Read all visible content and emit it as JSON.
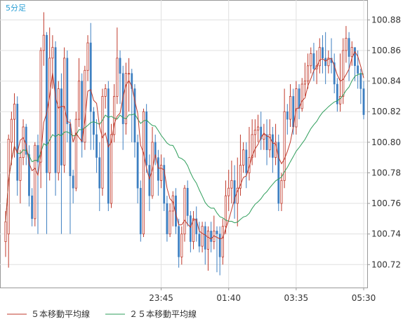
{
  "chart_data": {
    "type": "candlestick",
    "timeframe_label": "5分足",
    "x_tick_labels": [
      "23:45",
      "01:40",
      "03:35",
      "05:30"
    ],
    "y_tick_labels": [
      "100.72",
      "100.74",
      "100.76",
      "100.78",
      "100.80",
      "100.82",
      "100.84",
      "100.86",
      "100.88"
    ],
    "ylim": [
      100.705,
      100.893
    ],
    "grid": true,
    "legend_position": "bottom-left",
    "colors": {
      "up_candle": "#c0392b",
      "down_candle": "#3d7fc1",
      "ma5": "#c0392b",
      "ma25": "#2e9e5b",
      "grid": "#e0e0e0",
      "axis": "#999999"
    },
    "series": [
      {
        "name": "５本移動平均線",
        "key": "ma5"
      },
      {
        "name": "２５本移動平均線",
        "key": "ma25"
      }
    ],
    "candles": [
      [
        100.735,
        100.748,
        100.725,
        100.755
      ],
      [
        100.74,
        100.802,
        100.718,
        100.805
      ],
      [
        100.8,
        100.815,
        100.785,
        100.82
      ],
      [
        100.815,
        100.825,
        100.79,
        100.832
      ],
      [
        100.825,
        100.775,
        100.765,
        100.83
      ],
      [
        100.775,
        100.79,
        100.76,
        100.795
      ],
      [
        100.79,
        100.81,
        100.785,
        100.815
      ],
      [
        100.81,
        100.792,
        100.785,
        100.812
      ],
      [
        100.792,
        100.765,
        100.758,
        100.798
      ],
      [
        100.765,
        100.75,
        100.745,
        100.77
      ],
      [
        100.75,
        100.798,
        100.745,
        100.8
      ],
      [
        100.798,
        100.787,
        100.74,
        100.805
      ],
      [
        100.787,
        100.86,
        100.77,
        100.862
      ],
      [
        100.86,
        100.87,
        100.85,
        100.885
      ],
      [
        100.87,
        100.78,
        100.74,
        100.872
      ],
      [
        100.78,
        100.855,
        100.775,
        100.875
      ],
      [
        100.855,
        100.862,
        100.835,
        100.87
      ],
      [
        100.862,
        100.78,
        100.765,
        100.866
      ],
      [
        100.78,
        100.835,
        100.775,
        100.84
      ],
      [
        100.835,
        100.785,
        100.74,
        100.845
      ],
      [
        100.785,
        100.855,
        100.78,
        100.862
      ],
      [
        100.855,
        100.812,
        100.8,
        100.86
      ],
      [
        100.812,
        100.778,
        100.74,
        100.815
      ],
      [
        100.778,
        100.77,
        100.76,
        100.782
      ],
      [
        100.77,
        100.815,
        100.768,
        100.82
      ],
      [
        100.815,
        100.84,
        100.81,
        100.855
      ],
      [
        100.84,
        100.8,
        100.79,
        100.845
      ],
      [
        100.8,
        100.847,
        100.795,
        100.85
      ],
      [
        100.847,
        100.865,
        100.84,
        100.87
      ],
      [
        100.865,
        100.82,
        100.795,
        100.878
      ],
      [
        100.82,
        100.805,
        100.795,
        100.823
      ],
      [
        100.805,
        100.79,
        100.78,
        100.815
      ],
      [
        100.79,
        100.77,
        100.755,
        100.8
      ],
      [
        100.77,
        100.83,
        100.765,
        100.835
      ],
      [
        100.83,
        100.835,
        100.822,
        100.838
      ],
      [
        100.835,
        100.76,
        100.755,
        100.84
      ],
      [
        100.76,
        100.805,
        100.757,
        100.812
      ],
      [
        100.805,
        100.83,
        100.8,
        100.838
      ],
      [
        100.83,
        100.855,
        100.825,
        100.875
      ],
      [
        100.855,
        100.845,
        100.825,
        100.86
      ],
      [
        100.845,
        100.812,
        100.795,
        100.85
      ],
      [
        100.812,
        100.845,
        100.805,
        100.852
      ],
      [
        100.845,
        100.845,
        100.82,
        100.855
      ],
      [
        100.845,
        100.835,
        100.8,
        100.848
      ],
      [
        100.835,
        100.8,
        100.79,
        100.838
      ],
      [
        100.8,
        100.77,
        100.76,
        100.805
      ],
      [
        100.77,
        100.74,
        100.735,
        100.775
      ],
      [
        100.74,
        100.82,
        100.738,
        100.822
      ],
      [
        100.82,
        100.785,
        100.78,
        100.825
      ],
      [
        100.785,
        100.765,
        100.755,
        100.792
      ],
      [
        100.765,
        100.8,
        100.763,
        100.81
      ],
      [
        100.8,
        100.79,
        100.785,
        100.805
      ],
      [
        100.79,
        100.775,
        100.765,
        100.795
      ],
      [
        100.775,
        100.785,
        100.77,
        100.792
      ],
      [
        100.785,
        100.76,
        100.755,
        100.79
      ],
      [
        100.76,
        100.74,
        100.735,
        100.765
      ],
      [
        100.74,
        100.755,
        100.738,
        100.76
      ],
      [
        100.755,
        100.765,
        100.745,
        100.768
      ],
      [
        100.765,
        100.745,
        100.74,
        100.77
      ],
      [
        100.745,
        100.725,
        100.718,
        100.75
      ],
      [
        100.725,
        100.74,
        100.72,
        100.745
      ],
      [
        100.74,
        100.77,
        100.735,
        100.772
      ],
      [
        100.77,
        100.752,
        100.745,
        100.775
      ],
      [
        100.752,
        100.735,
        100.728,
        100.755
      ],
      [
        100.735,
        100.75,
        100.73,
        100.755
      ],
      [
        100.75,
        100.74,
        100.735,
        100.758
      ],
      [
        100.74,
        100.732,
        100.728,
        100.748
      ],
      [
        100.732,
        100.745,
        100.728,
        100.748
      ],
      [
        100.745,
        100.73,
        100.72,
        100.748
      ],
      [
        100.73,
        100.742,
        100.716,
        100.745
      ],
      [
        100.742,
        100.735,
        100.728,
        100.748
      ],
      [
        100.735,
        100.742,
        100.73,
        100.752
      ],
      [
        100.742,
        100.74,
        100.715,
        100.745
      ],
      [
        100.74,
        100.725,
        100.713,
        100.745
      ],
      [
        100.725,
        100.745,
        100.72,
        100.75
      ],
      [
        100.745,
        100.765,
        100.74,
        100.775
      ],
      [
        100.765,
        100.77,
        100.755,
        100.782
      ],
      [
        100.77,
        100.775,
        100.76,
        100.788
      ],
      [
        100.775,
        100.76,
        100.75,
        100.785
      ],
      [
        100.76,
        100.77,
        100.745,
        100.79
      ],
      [
        100.77,
        100.785,
        100.765,
        100.805
      ],
      [
        100.785,
        100.795,
        100.78,
        100.8
      ],
      [
        100.795,
        100.78,
        100.77,
        100.8
      ],
      [
        100.78,
        100.79,
        100.775,
        100.81
      ],
      [
        100.79,
        100.805,
        100.785,
        100.815
      ],
      [
        100.805,
        100.808,
        100.79,
        100.815
      ],
      [
        100.808,
        100.81,
        100.8,
        100.818
      ],
      [
        100.81,
        100.802,
        100.795,
        100.82
      ],
      [
        100.802,
        100.805,
        100.795,
        100.812
      ],
      [
        100.805,
        100.795,
        100.785,
        100.815
      ],
      [
        100.795,
        100.805,
        100.79,
        100.815
      ],
      [
        100.805,
        100.79,
        100.78,
        100.81
      ],
      [
        100.79,
        100.8,
        100.785,
        100.812
      ],
      [
        100.8,
        100.76,
        100.755,
        100.805
      ],
      [
        100.76,
        100.775,
        100.755,
        100.78
      ],
      [
        100.775,
        100.82,
        100.77,
        100.835
      ],
      [
        100.82,
        100.815,
        100.805,
        100.825
      ],
      [
        100.815,
        100.83,
        100.81,
        100.838
      ],
      [
        100.83,
        100.81,
        100.805,
        100.835
      ],
      [
        100.81,
        100.835,
        100.805,
        100.84
      ],
      [
        100.835,
        100.822,
        100.815,
        100.838
      ],
      [
        100.822,
        100.838,
        100.82,
        100.842
      ],
      [
        100.838,
        100.84,
        100.83,
        100.852
      ],
      [
        100.84,
        100.85,
        100.835,
        100.858
      ],
      [
        100.85,
        100.858,
        100.845,
        100.862
      ],
      [
        100.858,
        100.848,
        100.84,
        100.865
      ],
      [
        100.848,
        100.85,
        100.838,
        100.86
      ],
      [
        100.85,
        100.862,
        100.845,
        100.868
      ],
      [
        100.862,
        100.855,
        100.845,
        100.87
      ],
      [
        100.855,
        100.85,
        100.838,
        100.872
      ],
      [
        100.85,
        100.855,
        100.845,
        100.86
      ],
      [
        100.855,
        100.852,
        100.845,
        100.868
      ],
      [
        100.852,
        100.838,
        100.832,
        100.858
      ],
      [
        100.838,
        100.825,
        100.82,
        100.842
      ],
      [
        100.825,
        100.83,
        100.82,
        100.858
      ],
      [
        100.83,
        100.86,
        100.825,
        100.868
      ],
      [
        100.86,
        100.868,
        100.852,
        100.876
      ],
      [
        100.868,
        100.856,
        100.84,
        100.872
      ],
      [
        100.856,
        100.862,
        100.85,
        100.866
      ],
      [
        100.862,
        100.85,
        100.84,
        100.862
      ],
      [
        100.85,
        100.845,
        100.835,
        100.86
      ],
      [
        100.845,
        100.835,
        100.825,
        100.848
      ],
      [
        100.835,
        100.818,
        100.815,
        100.84
      ]
    ]
  },
  "legend": {
    "ma5_label": "５本移動平均線",
    "ma25_label": "２５本移動平均線"
  }
}
